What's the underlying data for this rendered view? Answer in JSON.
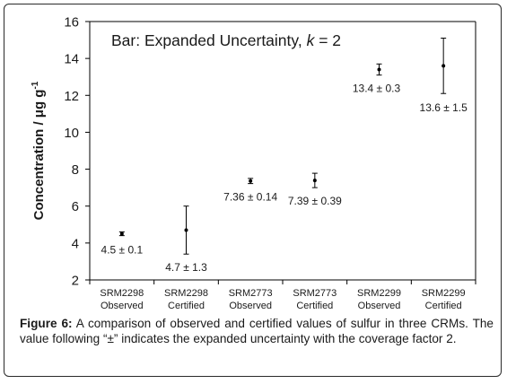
{
  "chart_data": {
    "type": "scatter",
    "title_prefix": "Bar: Expanded Uncertainty, ",
    "title_k": "k",
    "title_suffix": " = 2",
    "ylabel_main": "Concentration / μg g",
    "ylabel_sup": "-1",
    "xlabel": "",
    "ylim": [
      2,
      16
    ],
    "yticks": [
      "2",
      "4",
      "6",
      "8",
      "10",
      "12",
      "14",
      "16"
    ],
    "grid": false,
    "legend": "none",
    "categories": [
      {
        "line1": "SRM2298",
        "line2": "Observed"
      },
      {
        "line1": "SRM2298",
        "line2": "Certified"
      },
      {
        "line1": "SRM2773",
        "line2": "Observed"
      },
      {
        "line1": "SRM2773",
        "line2": "Certified"
      },
      {
        "line1": "SRM2299",
        "line2": "Observed"
      },
      {
        "line1": "SRM2299",
        "line2": "Certified"
      }
    ],
    "values": [
      4.5,
      4.7,
      7.36,
      7.39,
      13.4,
      13.6
    ],
    "errors": [
      0.1,
      1.3,
      0.14,
      0.39,
      0.3,
      1.5
    ],
    "point_labels": [
      "4.5 ± 0.1",
      "4.7 ± 1.3",
      "7.36 ± 0.14",
      "7.39 ± 0.39",
      "13.4 ± 0.3",
      "13.6 ± 1.5"
    ]
  },
  "caption": {
    "label": "Figure 6:",
    "text": " A comparison of observed and certified values of sulfur in three CRMs. The value following “±” indicates the expanded uncertainty with the coverage factor 2."
  },
  "colors": {
    "marker": "#000000",
    "text": "#1a1a1a",
    "frame": "#2a2a2a"
  }
}
